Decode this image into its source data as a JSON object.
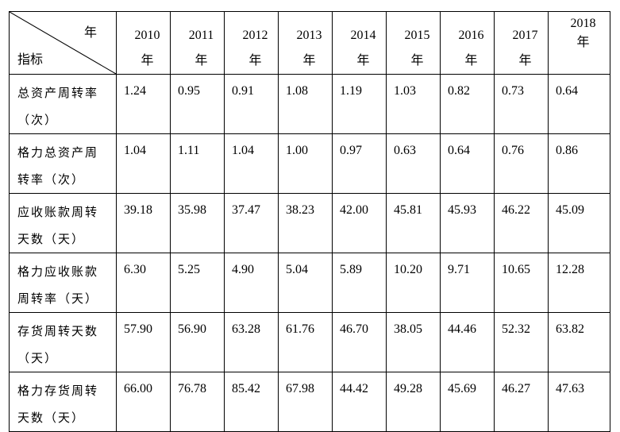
{
  "header": {
    "corner_top": "年",
    "corner_bottom": "指标",
    "years": [
      {
        "year": "2010",
        "suffix": "年"
      },
      {
        "year": "2011",
        "suffix": "年"
      },
      {
        "year": "2012",
        "suffix": "年"
      },
      {
        "year": "2013",
        "suffix": "年"
      },
      {
        "year": "2014",
        "suffix": "年"
      },
      {
        "year": "2015",
        "suffix": "年"
      },
      {
        "year": "2016",
        "suffix": "年"
      },
      {
        "year": "2017",
        "suffix": "年"
      },
      {
        "year": "2018",
        "suffix": "年"
      }
    ]
  },
  "rows": [
    {
      "label": [
        "总资产周转率",
        "（次）"
      ],
      "values": [
        "1.24",
        "0.95",
        "0.91",
        "1.08",
        "1.19",
        "1.03",
        "0.82",
        "0.73",
        "0.64"
      ]
    },
    {
      "label": [
        "格力总资产周",
        "转率（次）"
      ],
      "values": [
        "1.04",
        "1.11",
        "1.04",
        "1.00",
        "0.97",
        "0.63",
        "0.64",
        "0.76",
        "0.86"
      ]
    },
    {
      "label": [
        "应收账款周转",
        "天数（天）"
      ],
      "values": [
        "39.18",
        "35.98",
        "37.47",
        "38.23",
        "42.00",
        "45.81",
        "45.93",
        "46.22",
        "45.09"
      ]
    },
    {
      "label": [
        "格力应收账款",
        "周转率（天）"
      ],
      "values": [
        "6.30",
        "5.25",
        "4.90",
        "5.04",
        "5.89",
        "10.20",
        "9.71",
        "10.65",
        "12.28"
      ]
    },
    {
      "label": [
        "存货周转天数",
        "（天）"
      ],
      "values": [
        "57.90",
        "56.90",
        "63.28",
        "61.76",
        "46.70",
        "38.05",
        "44.46",
        "52.32",
        "63.82"
      ]
    },
    {
      "label": [
        "格力存货周转",
        "天数（天）"
      ],
      "values": [
        "66.00",
        "76.78",
        "85.42",
        "67.98",
        "44.42",
        "49.28",
        "45.69",
        "46.27",
        "47.63"
      ]
    }
  ]
}
